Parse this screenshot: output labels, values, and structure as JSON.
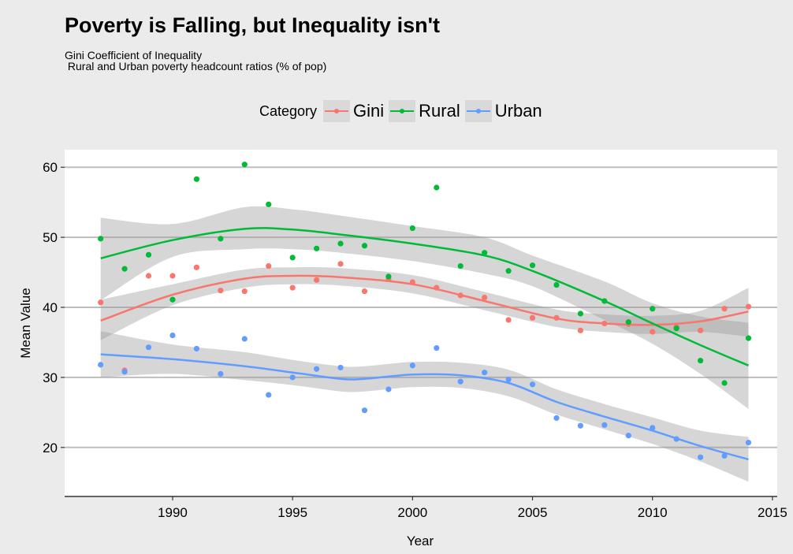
{
  "chart_data": {
    "type": "line",
    "title": "Poverty is Falling, but Inequality isn't",
    "subtitle": "Gini Coefficient of Inequality\n Rural and Urban poverty headcount ratios (% of pop)",
    "legend_title": "Category",
    "legend_position": "top",
    "xlabel": "Year",
    "ylabel": "Mean Value",
    "xlim": [
      1985.5,
      2015.2
    ],
    "ylim": [
      13,
      62.5
    ],
    "x_ticks": [
      1990,
      1995,
      2000,
      2005,
      2010,
      2015
    ],
    "y_ticks": [
      20,
      30,
      40,
      50,
      60
    ],
    "grid": "horizontal",
    "series": [
      {
        "name": "Gini",
        "color": "#f8766d",
        "points": [
          [
            1987,
            40.7
          ],
          [
            1988,
            31.0
          ],
          [
            1989,
            44.5
          ],
          [
            1990,
            44.5
          ],
          [
            1991,
            45.7
          ],
          [
            1992,
            42.4
          ],
          [
            1993,
            42.3
          ],
          [
            1994,
            45.9
          ],
          [
            1995,
            42.8
          ],
          [
            1996,
            43.9
          ],
          [
            1997,
            46.2
          ],
          [
            1998,
            42.3
          ],
          [
            1999,
            44.0
          ],
          [
            2000,
            43.6
          ],
          [
            2001,
            42.8
          ],
          [
            2002,
            41.7
          ],
          [
            2003,
            41.4
          ],
          [
            2004,
            38.2
          ],
          [
            2005,
            38.5
          ],
          [
            2006,
            38.5
          ],
          [
            2007,
            36.7
          ],
          [
            2008,
            37.7
          ],
          [
            2009,
            37.6
          ],
          [
            2010,
            36.5
          ],
          [
            2011,
            37.2
          ],
          [
            2012,
            36.7
          ],
          [
            2013,
            39.8
          ],
          [
            2014,
            40.1
          ]
        ],
        "trend": [
          [
            1987,
            38.1
          ],
          [
            1990,
            41.8
          ],
          [
            1993,
            44.1
          ],
          [
            1995,
            44.5
          ],
          [
            1997,
            44.3
          ],
          [
            2000,
            43.3
          ],
          [
            2003,
            40.9
          ],
          [
            2006,
            38.4
          ],
          [
            2008,
            37.7
          ],
          [
            2010,
            37.5
          ],
          [
            2012,
            38.0
          ],
          [
            2014,
            39.4
          ]
        ],
        "band": [
          [
            1987,
            35.3,
            41.1
          ],
          [
            1990,
            40.3,
            43.3
          ],
          [
            1993,
            42.8,
            45.4
          ],
          [
            1995,
            43.3,
            45.7
          ],
          [
            1997,
            43.1,
            45.6
          ],
          [
            2000,
            42.0,
            44.6
          ],
          [
            2003,
            39.6,
            42.2
          ],
          [
            2006,
            37.2,
            39.7
          ],
          [
            2008,
            36.5,
            39.0
          ],
          [
            2010,
            36.2,
            38.8
          ],
          [
            2012,
            36.5,
            39.5
          ],
          [
            2014,
            35.8,
            42.8
          ]
        ]
      },
      {
        "name": "Rural",
        "color": "#00ba38",
        "points": [
          [
            1987,
            49.8
          ],
          [
            1988,
            45.5
          ],
          [
            1989,
            47.5
          ],
          [
            1990,
            41.1
          ],
          [
            1991,
            58.3
          ],
          [
            1992,
            49.8
          ],
          [
            1993,
            60.4
          ],
          [
            1994,
            54.7
          ],
          [
            1995,
            47.1
          ],
          [
            1996,
            48.4
          ],
          [
            1997,
            49.1
          ],
          [
            1998,
            48.8
          ],
          [
            1999,
            44.4
          ],
          [
            2000,
            51.3
          ],
          [
            2001,
            57.1
          ],
          [
            2002,
            45.9
          ],
          [
            2003,
            47.8
          ],
          [
            2004,
            45.2
          ],
          [
            2005,
            46.0
          ],
          [
            2006,
            43.2
          ],
          [
            2007,
            39.1
          ],
          [
            2008,
            40.9
          ],
          [
            2009,
            37.9
          ],
          [
            2010,
            39.8
          ],
          [
            2011,
            37.0
          ],
          [
            2012,
            32.4
          ],
          [
            2013,
            29.2
          ],
          [
            2014,
            35.6
          ]
        ],
        "trend": [
          [
            1987,
            47.0
          ],
          [
            1990,
            49.6
          ],
          [
            1993,
            51.2
          ],
          [
            1995,
            51.1
          ],
          [
            1997,
            50.4
          ],
          [
            2000,
            49.1
          ],
          [
            2003,
            47.4
          ],
          [
            2005,
            45.2
          ],
          [
            2008,
            40.9
          ],
          [
            2010,
            37.7
          ],
          [
            2012,
            34.6
          ],
          [
            2014,
            31.7
          ]
        ],
        "band": [
          [
            1987,
            41.0,
            52.8
          ],
          [
            1990,
            47.2,
            51.9
          ],
          [
            1993,
            48.3,
            54.3
          ],
          [
            1995,
            48.3,
            54.0
          ],
          [
            1997,
            47.8,
            53.1
          ],
          [
            2000,
            46.6,
            51.6
          ],
          [
            2003,
            44.8,
            50.0
          ],
          [
            2005,
            43.0,
            47.4
          ],
          [
            2008,
            38.2,
            43.7
          ],
          [
            2010,
            34.8,
            40.6
          ],
          [
            2012,
            30.5,
            38.7
          ],
          [
            2014,
            25.5,
            37.8
          ]
        ]
      },
      {
        "name": "Urban",
        "color": "#619cff",
        "points": [
          [
            1987,
            31.8
          ],
          [
            1988,
            30.8
          ],
          [
            1989,
            34.3
          ],
          [
            1990,
            36.0
          ],
          [
            1991,
            34.1
          ],
          [
            1992,
            30.5
          ],
          [
            1993,
            35.5
          ],
          [
            1994,
            27.5
          ],
          [
            1995,
            30.0
          ],
          [
            1996,
            31.2
          ],
          [
            1997,
            31.4
          ],
          [
            1998,
            25.3
          ],
          [
            1999,
            28.3
          ],
          [
            2000,
            31.7
          ],
          [
            2001,
            34.2
          ],
          [
            2002,
            29.4
          ],
          [
            2003,
            30.7
          ],
          [
            2004,
            29.7
          ],
          [
            2005,
            29.0
          ],
          [
            2006,
            24.2
          ],
          [
            2007,
            23.1
          ],
          [
            2008,
            23.2
          ],
          [
            2009,
            21.7
          ],
          [
            2010,
            22.8
          ],
          [
            2011,
            21.2
          ],
          [
            2012,
            18.6
          ],
          [
            2013,
            18.8
          ],
          [
            2014,
            20.7
          ]
        ],
        "trend": [
          [
            1987,
            33.3
          ],
          [
            1990,
            32.6
          ],
          [
            1993,
            31.6
          ],
          [
            1995,
            30.7
          ],
          [
            1997,
            29.8
          ],
          [
            1998,
            29.8
          ],
          [
            2000,
            30.4
          ],
          [
            2002,
            30.3
          ],
          [
            2004,
            29.2
          ],
          [
            2006,
            26.5
          ],
          [
            2008,
            24.4
          ],
          [
            2010,
            22.4
          ],
          [
            2012,
            20.2
          ],
          [
            2014,
            18.3
          ]
        ],
        "band": [
          [
            1987,
            30.0,
            36.6
          ],
          [
            1990,
            30.5,
            34.7
          ],
          [
            1993,
            29.6,
            33.6
          ],
          [
            1995,
            28.9,
            32.5
          ],
          [
            1997,
            28.0,
            31.6
          ],
          [
            1998,
            28.0,
            31.6
          ],
          [
            2000,
            28.6,
            32.2
          ],
          [
            2002,
            28.5,
            32.1
          ],
          [
            2004,
            27.3,
            31.1
          ],
          [
            2006,
            24.7,
            28.3
          ],
          [
            2008,
            22.6,
            26.2
          ],
          [
            2010,
            20.5,
            24.3
          ],
          [
            2012,
            18.0,
            22.4
          ],
          [
            2014,
            15.1,
            21.5
          ]
        ]
      }
    ]
  }
}
